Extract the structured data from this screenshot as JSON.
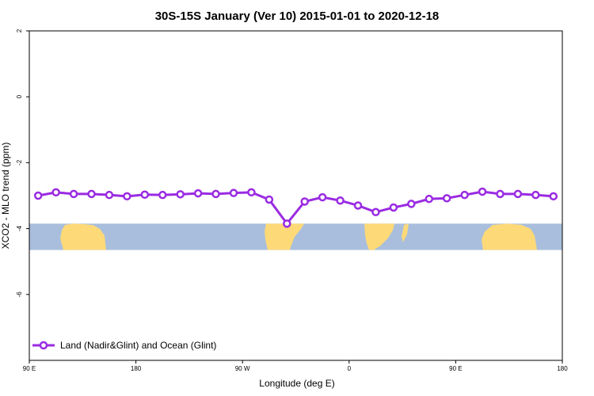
{
  "chart_data": {
    "type": "line",
    "title": "30S-15S January (Ver 10)   2015-01-01 to 2020-12-18",
    "xlabel": "Longitude (deg E)",
    "ylabel": "XCO2 - MLO trend (ppm)",
    "x_ticks": [
      {
        "value": 90,
        "label": "90 E"
      },
      {
        "value": 180,
        "label": "180"
      },
      {
        "value": 270,
        "label": "90 W"
      },
      {
        "value": 360,
        "label": "0"
      },
      {
        "value": 450,
        "label": "90 E"
      },
      {
        "value": 540,
        "label": "180"
      }
    ],
    "y_ticks": [
      {
        "value": 2,
        "label": "2"
      },
      {
        "value": 0,
        "label": "0"
      },
      {
        "value": -2,
        "label": "-2"
      },
      {
        "value": -4,
        "label": "-4"
      },
      {
        "value": -6,
        "label": "-6"
      }
    ],
    "xlim": [
      90,
      540
    ],
    "ylim": [
      -8,
      2
    ],
    "map_band": {
      "ymin": -4.65,
      "ymax": -3.85,
      "ocean_color": "#a8bedc",
      "land_color": "#fed978"
    },
    "grid": false,
    "legend_position": "bottom-left",
    "series": [
      {
        "name": "Land (Nadir&Glint) and Ocean (Glint)",
        "color": "#9a2be2",
        "x": [
          97.5,
          112.5,
          127.5,
          142.5,
          157.5,
          172.5,
          187.5,
          202.5,
          217.5,
          232.5,
          247.5,
          262.5,
          277.5,
          292.5,
          307.5,
          322.5,
          337.5,
          352.5,
          367.5,
          382.5,
          397.5,
          412.5,
          427.5,
          442.5,
          457.5,
          472.5,
          487.5,
          502.5,
          517.5,
          532.5
        ],
        "y": [
          -3.0,
          -2.9,
          -2.95,
          -2.95,
          -2.98,
          -3.02,
          -2.97,
          -2.98,
          -2.96,
          -2.93,
          -2.95,
          -2.92,
          -2.9,
          -3.12,
          -3.85,
          -3.18,
          -3.05,
          -3.15,
          -3.3,
          -3.5,
          -3.36,
          -3.25,
          -3.1,
          -3.08,
          -2.98,
          -2.88,
          -2.95,
          -2.95,
          -2.98,
          -3.02
        ]
      }
    ]
  }
}
